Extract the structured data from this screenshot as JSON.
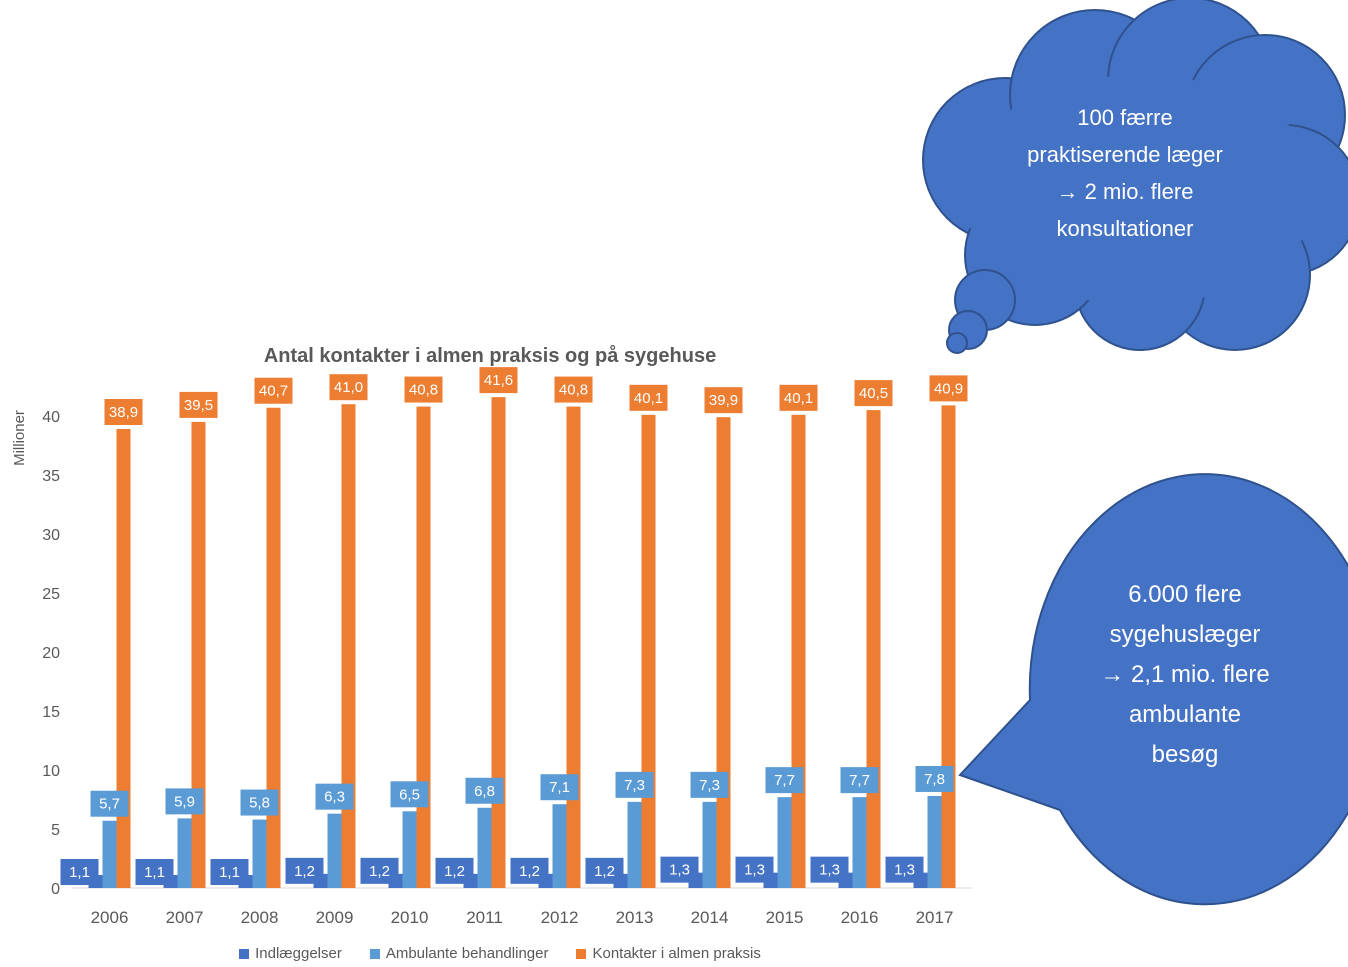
{
  "chart_data": {
    "type": "bar",
    "title": "Antal kontakter i almen praksis og på sygehuse",
    "ylabel": "Millioner",
    "xlabel": "",
    "ylim": [
      0,
      40
    ],
    "yticks": [
      0,
      5,
      10,
      15,
      20,
      25,
      30,
      35,
      40
    ],
    "grid": false,
    "legend_position": "bottom",
    "categories": [
      "2006",
      "2007",
      "2008",
      "2009",
      "2010",
      "2011",
      "2012",
      "2013",
      "2014",
      "2015",
      "2016",
      "2017"
    ],
    "series": [
      {
        "name": "Indlæggelser",
        "color": "#4472C4",
        "values": [
          1.1,
          1.1,
          1.1,
          1.2,
          1.2,
          1.2,
          1.2,
          1.2,
          1.3,
          1.3,
          1.3,
          1.3
        ],
        "labels": [
          "1,1",
          "1,1",
          "1,1",
          "1,2",
          "1,2",
          "1,2",
          "1,2",
          "1,2",
          "1,3",
          "1,3",
          "1,3",
          "1,3"
        ]
      },
      {
        "name": "Ambulante behandlinger",
        "color": "#5B9BD5",
        "values": [
          5.7,
          5.9,
          5.8,
          6.3,
          6.5,
          6.8,
          7.1,
          7.3,
          7.3,
          7.7,
          7.7,
          7.8
        ],
        "labels": [
          "5,7",
          "5,9",
          "5,8",
          "6,3",
          "6,5",
          "6,8",
          "7,1",
          "7,3",
          "7,3",
          "7,7",
          "7,7",
          "7,8"
        ]
      },
      {
        "name": "Kontakter i almen praksis",
        "color": "#ED7D31",
        "values": [
          38.9,
          39.5,
          40.7,
          41.0,
          40.8,
          41.6,
          40.8,
          40.1,
          39.9,
          40.1,
          40.5,
          40.9
        ],
        "labels": [
          "38,9",
          "39,5",
          "40,7",
          "41,0",
          "40,8",
          "41,6",
          "40,8",
          "40,1",
          "39,9",
          "40,1",
          "40,5",
          "40,9"
        ]
      }
    ]
  },
  "callouts": {
    "cloud": {
      "color": "#4472C4",
      "lines": [
        "100 færre",
        "praktiserende læger",
        "→ 2 mio. flere",
        "konsultationer"
      ]
    },
    "speech": {
      "color": "#4472C4",
      "lines": [
        "6.000 flere",
        "sygehuslæger",
        "→ 2,1 mio. flere",
        "ambulante",
        "besøg"
      ]
    }
  }
}
